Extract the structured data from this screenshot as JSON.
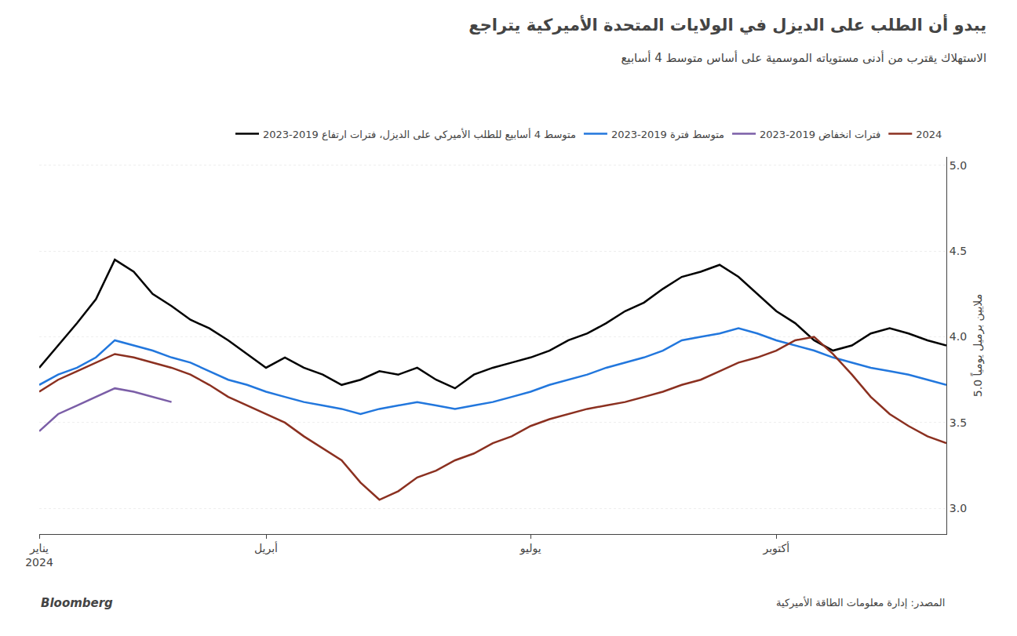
{
  "chart_data": {
    "type": "line",
    "title": "يبدو أن الطلب على الديزل في الولايات المتحدة الأميركية يتراجع",
    "subtitle": "الاستهلاك يقترب من أدنى مستوياته الموسمية على أساس متوسط 4 أسابيع",
    "ylabel": "5.0 ملايين برميل يومياً",
    "annotations": [
      "المصدر: إدارة معلومات الطاقة الأميركية",
      "Bloomberg"
    ],
    "categories": [
      "يناير\n2024",
      null,
      null,
      null,
      null,
      null,
      null,
      null,
      null,
      null,
      null,
      null,
      "أبريل",
      null,
      null,
      null,
      null,
      null,
      null,
      null,
      null,
      null,
      null,
      null,
      null,
      null,
      "يوليو",
      null,
      null,
      null,
      null,
      null,
      null,
      null,
      null,
      null,
      null,
      null,
      null,
      "أكتوبر",
      null,
      null,
      null,
      null,
      null,
      null,
      null,
      null,
      null
    ],
    "ylim": [
      2.85,
      5.05
    ],
    "yticks": [
      {
        "value": 3.0,
        "label": "3.0"
      },
      {
        "value": 3.5,
        "label": "3.5"
      },
      {
        "value": 4.0,
        "label": "4.0"
      },
      {
        "value": 4.5,
        "label": "4.5"
      },
      {
        "value": 5.0,
        "label": "5.0"
      }
    ],
    "grid": true,
    "legend": "top",
    "series": [
      {
        "name": "متوسط 4 أسابيع للطلب الأميركي على الديزل، فترات ارتفاع 2019-2023",
        "color": "#000000",
        "values": [
          3.82,
          3.95,
          4.08,
          4.22,
          4.45,
          4.38,
          4.25,
          4.18,
          4.1,
          4.05,
          3.98,
          3.9,
          3.82,
          3.88,
          3.82,
          3.78,
          3.72,
          3.75,
          3.8,
          3.78,
          3.82,
          3.75,
          3.7,
          3.78,
          3.82,
          3.85,
          3.88,
          3.92,
          3.98,
          4.02,
          4.08,
          4.15,
          4.2,
          4.28,
          4.35,
          4.38,
          4.42,
          4.35,
          4.25,
          4.15,
          4.08,
          3.98,
          3.92,
          3.95,
          4.02,
          4.05,
          4.02,
          3.98,
          3.95
        ]
      },
      {
        "name": "متوسط فترة 2019-2023",
        "color": "#2277DD",
        "values": [
          3.72,
          3.78,
          3.82,
          3.88,
          3.98,
          3.95,
          3.92,
          3.88,
          3.85,
          3.8,
          3.75,
          3.72,
          3.68,
          3.65,
          3.62,
          3.6,
          3.58,
          3.55,
          3.58,
          3.6,
          3.62,
          3.6,
          3.58,
          3.6,
          3.62,
          3.65,
          3.68,
          3.72,
          3.75,
          3.78,
          3.82,
          3.85,
          3.88,
          3.92,
          3.98,
          4.0,
          4.02,
          4.05,
          4.02,
          3.98,
          3.95,
          3.92,
          3.88,
          3.85,
          3.82,
          3.8,
          3.78,
          3.75,
          3.72
        ]
      },
      {
        "name": "فترات انخفاض 2019-2023",
        "color": "#7B5EA7",
        "values": [
          3.45,
          3.55,
          3.6,
          3.65,
          3.7,
          3.68,
          3.65,
          3.62,
          null,
          null,
          null,
          null,
          null,
          null,
          null,
          null,
          null,
          null,
          null,
          null,
          null,
          null,
          null,
          null,
          null,
          null,
          null,
          null,
          null,
          null,
          null,
          null,
          null,
          null,
          null,
          null,
          null,
          null,
          null,
          null,
          null,
          null,
          null,
          null,
          null,
          null,
          null,
          null,
          null
        ]
      },
      {
        "name": "2024",
        "color": "#8B3020",
        "values": [
          3.68,
          3.75,
          3.8,
          3.85,
          3.9,
          3.88,
          3.85,
          3.82,
          3.78,
          3.72,
          3.65,
          3.6,
          3.55,
          3.5,
          3.42,
          3.35,
          3.28,
          3.15,
          3.05,
          3.1,
          3.18,
          3.22,
          3.28,
          3.32,
          3.38,
          3.42,
          3.48,
          3.52,
          3.55,
          3.58,
          3.6,
          3.62,
          3.65,
          3.68,
          3.72,
          3.75,
          3.8,
          3.85,
          3.88,
          3.92,
          3.98,
          4.0,
          3.9,
          3.78,
          3.65,
          3.55,
          3.48,
          3.42,
          3.38
        ]
      }
    ]
  }
}
